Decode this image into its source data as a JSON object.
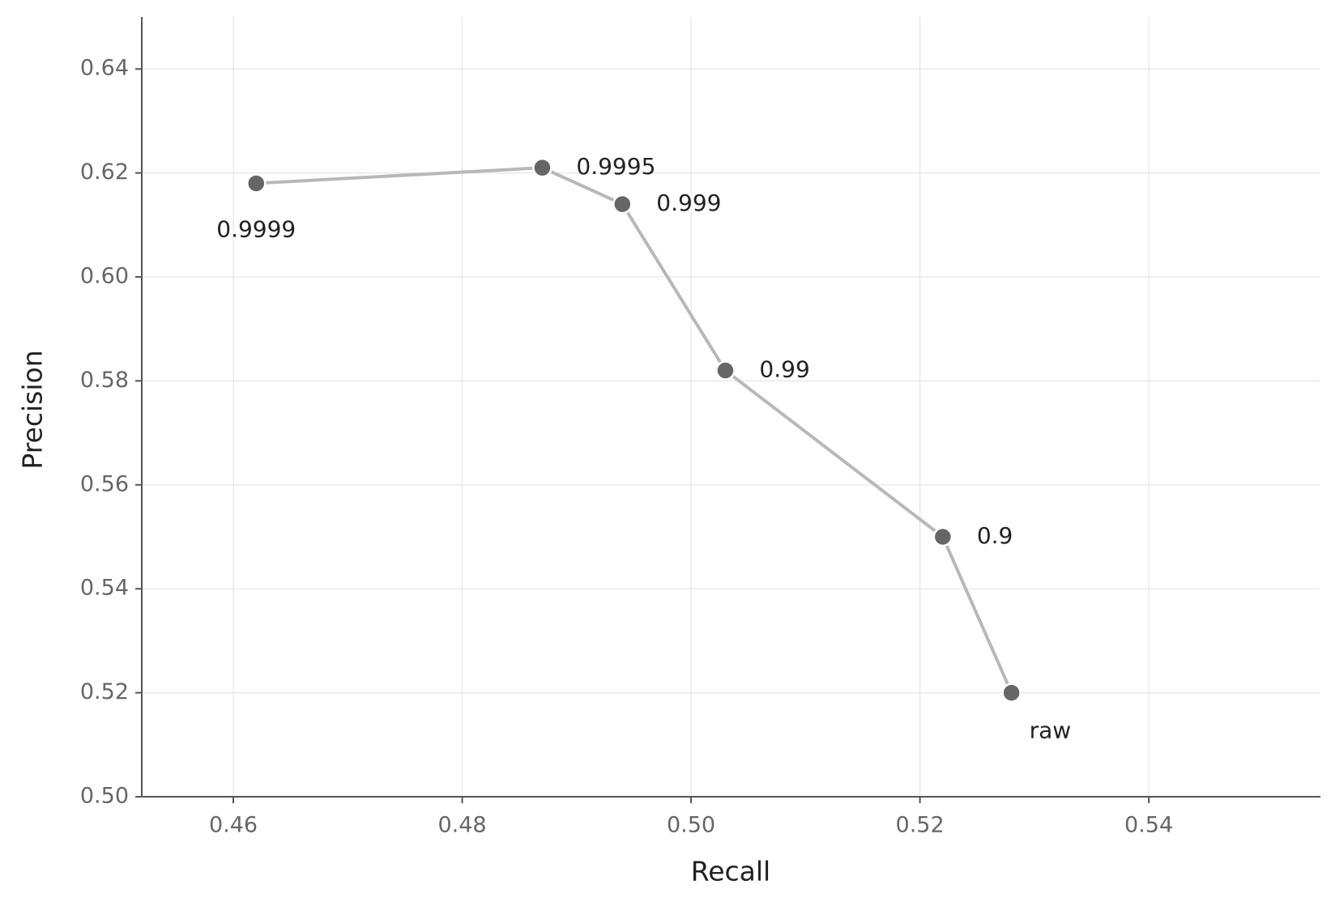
{
  "chart_data": {
    "type": "line",
    "x_label": "Recall",
    "y_label": "Precision",
    "x": [
      0.462,
      0.487,
      0.494,
      0.503,
      0.522,
      0.528
    ],
    "series": [
      {
        "name": "Precision",
        "color": "#666666",
        "line_color": "#b8b8b8",
        "values": [
          0.618,
          0.621,
          0.614,
          0.582,
          0.55,
          0.52
        ],
        "labels": [
          "0.9999",
          "0.9995",
          "0.999",
          "0.99",
          "0.9",
          "raw"
        ]
      }
    ],
    "xlim": [
      0.452,
      0.555
    ],
    "ylim": [
      0.5,
      0.65
    ],
    "xticks": [
      0.46,
      0.48,
      {
        "value": 0.5,
        "label": "0.50"
      },
      0.52,
      0.54
    ],
    "yticks": [
      {
        "value": 0.5,
        "label": "0.50"
      },
      0.52,
      0.54,
      0.56,
      0.58,
      {
        "value": 0.6,
        "label": "0.60"
      },
      0.62,
      0.64
    ],
    "grid": true
  }
}
